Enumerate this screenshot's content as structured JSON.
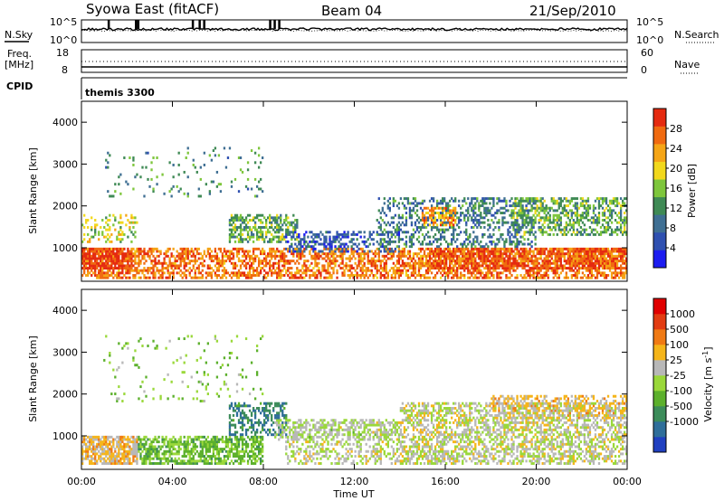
{
  "header": {
    "station": "Syowa East (fitACF)",
    "beam": "Beam 04",
    "date": "21/Sep/2010"
  },
  "strip_labels": {
    "nsky": "N.Sky",
    "nsearch": "N.Search",
    "freq_line1": "Freq.",
    "freq_line2": "[MHz]",
    "nave": "Nave",
    "cpid": "CPID",
    "cpid_value": "themis 3300",
    "nsky_ticks": [
      "10^5",
      "10^0"
    ],
    "nsearch_ticks": [
      "10^5",
      "10^0"
    ],
    "freq_ticks": [
      "18",
      "8"
    ],
    "nave_ticks": [
      "60",
      "0"
    ]
  },
  "x_axis": {
    "label": "Time UT",
    "ticks": [
      "00:00",
      "04:00",
      "08:00",
      "12:00",
      "16:00",
      "20:00",
      "00:00"
    ]
  },
  "chart_data": [
    {
      "type": "heatmap",
      "panel": "power",
      "x": {
        "label": "Time UT",
        "unit": "hours",
        "range": [
          0,
          24
        ],
        "ticks": [
          0,
          4,
          8,
          12,
          16,
          20,
          24
        ]
      },
      "y": {
        "label": "Slant Range [km]",
        "range": [
          200,
          4500
        ],
        "ticks": [
          1000,
          2000,
          3000,
          4000
        ]
      },
      "colorbar": {
        "label": "Power [dB]",
        "range": [
          0,
          32
        ],
        "tick_labels": [
          "4",
          "8",
          "12",
          "16",
          "20",
          "24",
          "28"
        ],
        "colors": [
          "#1c1cf0",
          "#2f50b0",
          "#3f6f93",
          "#3f8a55",
          "#7ec63c",
          "#f2d81c",
          "#f5a516",
          "#f06a10",
          "#e52a10"
        ]
      },
      "echo_regions": [
        {
          "t0": 0.0,
          "t1": 24.0,
          "r0": 250,
          "r1": 1000,
          "intensity": 26,
          "density": 0.55
        },
        {
          "t0": 0.0,
          "t1": 2.2,
          "r0": 500,
          "r1": 1000,
          "intensity": 30,
          "density": 0.8
        },
        {
          "t0": 15.2,
          "t1": 24.0,
          "r0": 500,
          "r1": 1000,
          "intensity": 28,
          "density": 0.7
        },
        {
          "t0": 0.0,
          "t1": 2.5,
          "r0": 1100,
          "r1": 1800,
          "intensity": 18,
          "density": 0.3
        },
        {
          "t0": 6.5,
          "t1": 9.5,
          "r0": 1100,
          "r1": 1800,
          "intensity": 14,
          "density": 0.55
        },
        {
          "t0": 9.0,
          "t1": 14.0,
          "r0": 900,
          "r1": 1400,
          "intensity": 7,
          "density": 0.4
        },
        {
          "t0": 13.0,
          "t1": 20.0,
          "r0": 1000,
          "r1": 2200,
          "intensity": 10,
          "density": 0.35
        },
        {
          "t0": 15.0,
          "t1": 16.5,
          "r0": 1500,
          "r1": 2000,
          "intensity": 24,
          "density": 0.6
        },
        {
          "t0": 19.0,
          "t1": 24.0,
          "r0": 1300,
          "r1": 2200,
          "intensity": 14,
          "density": 0.5
        },
        {
          "t0": 1.0,
          "t1": 8.0,
          "r0": 2200,
          "r1": 3400,
          "intensity": 12,
          "density": 0.06
        }
      ]
    },
    {
      "type": "heatmap",
      "panel": "velocity",
      "x": {
        "label": "Time UT",
        "unit": "hours",
        "range": [
          0,
          24
        ],
        "ticks": [
          0,
          4,
          8,
          12,
          16,
          20,
          24
        ]
      },
      "y": {
        "label": "Slant Range [km]",
        "range": [
          200,
          4500
        ],
        "ticks": [
          1000,
          2000,
          3000,
          4000
        ]
      },
      "colorbar": {
        "label": "Velocity [m s^-1]",
        "range": [
          -1200,
          1200
        ],
        "tick_labels": [
          "1000",
          "500",
          "100",
          "25",
          "-25",
          "-100",
          "-500",
          "-1000"
        ],
        "colors": [
          "#2040c0",
          "#2f6e9a",
          "#3c8c5a",
          "#5cb02c",
          "#9ad83a",
          "#b8b8b8",
          "#f5b51a",
          "#f07a14",
          "#e23c12",
          "#e00000"
        ]
      },
      "echo_regions": [
        {
          "t0": 0.0,
          "t1": 2.5,
          "r0": 300,
          "r1": 1000,
          "velocity": 300,
          "density": 0.75
        },
        {
          "t0": 2.5,
          "t1": 8.0,
          "r0": 300,
          "r1": 1000,
          "velocity": -300,
          "density": 0.65
        },
        {
          "t0": 6.5,
          "t1": 9.0,
          "r0": 1000,
          "r1": 1800,
          "velocity": -700,
          "density": 0.45
        },
        {
          "t0": 8.5,
          "t1": 14.0,
          "r0": 900,
          "r1": 1400,
          "velocity": 0,
          "density": 0.55
        },
        {
          "t0": 9.0,
          "t1": 16.0,
          "r0": 300,
          "r1": 900,
          "velocity": 80,
          "density": 0.35
        },
        {
          "t0": 14.0,
          "t1": 24.0,
          "r0": 300,
          "r1": 1800,
          "velocity": 80,
          "density": 0.5
        },
        {
          "t0": 18.0,
          "t1": 24.0,
          "r0": 1400,
          "r1": 2000,
          "velocity": 300,
          "density": 0.4
        },
        {
          "t0": 1.0,
          "t1": 8.0,
          "r0": 1800,
          "r1": 3400,
          "velocity": -200,
          "density": 0.05
        }
      ]
    }
  ]
}
